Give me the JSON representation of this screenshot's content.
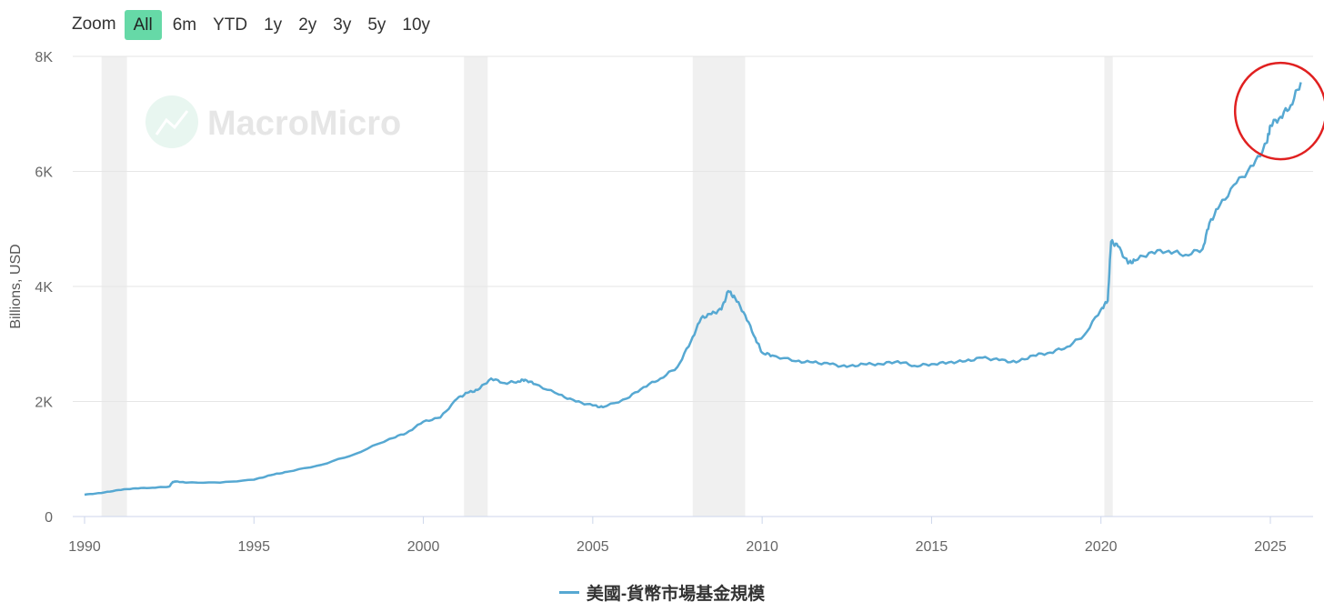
{
  "zoom": {
    "label": "Zoom",
    "options": [
      "All",
      "6m",
      "YTD",
      "1y",
      "2y",
      "3y",
      "5y",
      "10y"
    ],
    "active": "All"
  },
  "watermark": "MacroMicro",
  "legend": {
    "series_name": "美國-貨幣市場基金規模"
  },
  "colors": {
    "series": "#56a8d2",
    "recession": "#f0f0f0",
    "zoom_active": "#66d9a7",
    "highlight_circle": "#e02020"
  },
  "chart_data": {
    "type": "line",
    "ylabel": "Billions, USD",
    "ylim": [
      0,
      8000
    ],
    "xlim": [
      1990,
      2026.2
    ],
    "yticks": [
      {
        "v": 0,
        "label": "0"
      },
      {
        "v": 2000,
        "label": "2K"
      },
      {
        "v": 4000,
        "label": "4K"
      },
      {
        "v": 6000,
        "label": "6K"
      },
      {
        "v": 8000,
        "label": "8K"
      }
    ],
    "xticks": [
      1990,
      1995,
      2000,
      2005,
      2010,
      2015,
      2020,
      2025
    ],
    "grid": true,
    "recessions": [
      [
        1990.5,
        1991.25
      ],
      [
        2001.2,
        2001.9
      ],
      [
        2007.95,
        2009.5
      ],
      [
        2020.1,
        2020.35
      ]
    ],
    "annotation": {
      "type": "circle",
      "center": [
        2025.3,
        7050
      ]
    },
    "series": [
      {
        "name": "美國-貨幣市場基金規模",
        "x": [
          1990.0,
          1990.5,
          1991.0,
          1991.5,
          1992.0,
          1992.5,
          1992.6,
          1992.7,
          1993.0,
          1994.0,
          1995.0,
          1995.5,
          1996.0,
          1997.0,
          1998.0,
          1999.0,
          1999.5,
          2000.0,
          2000.5,
          2001.0,
          2001.3,
          2001.6,
          2002.0,
          2002.4,
          2002.8,
          2003.0,
          2003.3,
          2004.0,
          2004.5,
          2005.0,
          2005.3,
          2006.0,
          2006.5,
          2007.0,
          2007.5,
          2007.9,
          2008.2,
          2008.5,
          2008.8,
          2009.0,
          2009.2,
          2009.5,
          2009.8,
          2010.0,
          2010.3,
          2011.0,
          2011.5,
          2012.0,
          2012.5,
          2013.0,
          2013.5,
          2014.0,
          2014.5,
          2015.0,
          2015.5,
          2016.0,
          2016.5,
          2017.0,
          2017.5,
          2018.0,
          2018.5,
          2019.0,
          2019.5,
          2020.0,
          2020.2,
          2020.3,
          2020.5,
          2020.8,
          2021.0,
          2021.5,
          2022.0,
          2022.5,
          2023.0,
          2023.2,
          2023.5,
          2024.0,
          2024.5,
          2024.9,
          2025.0,
          2025.3,
          2025.6,
          2025.9
        ],
        "y": [
          380,
          410,
          460,
          490,
          500,
          520,
          600,
          610,
          590,
          590,
          640,
          720,
          780,
          900,
          1090,
          1350,
          1450,
          1650,
          1720,
          2050,
          2150,
          2200,
          2400,
          2320,
          2350,
          2380,
          2300,
          2120,
          2000,
          1930,
          1900,
          2050,
          2250,
          2400,
          2600,
          3050,
          3450,
          3520,
          3600,
          3920,
          3800,
          3500,
          3100,
          2850,
          2800,
          2700,
          2680,
          2650,
          2600,
          2650,
          2650,
          2700,
          2620,
          2650,
          2680,
          2700,
          2760,
          2720,
          2680,
          2800,
          2850,
          2950,
          3150,
          3600,
          3750,
          4780,
          4700,
          4400,
          4450,
          4600,
          4620,
          4550,
          4650,
          5100,
          5400,
          5800,
          6100,
          6500,
          6800,
          6950,
          7150,
          7550
        ]
      }
    ]
  }
}
